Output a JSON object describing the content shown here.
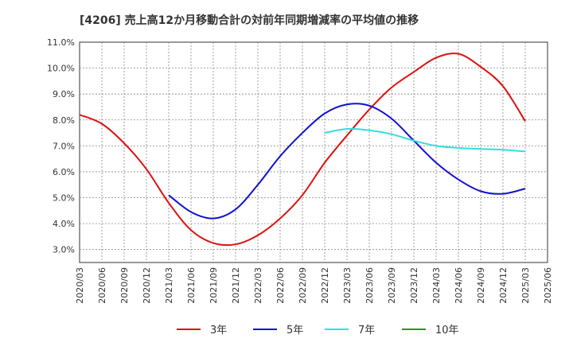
{
  "chart_data": {
    "type": "line",
    "title": "[4206]  売上高12か月移動合計の対前年同期増減率の平均値の推移",
    "xlabel": "",
    "ylabel": "",
    "x_ticks": [
      "2020/03",
      "2020/06",
      "2020/09",
      "2020/12",
      "2021/03",
      "2021/06",
      "2021/09",
      "2021/12",
      "2022/03",
      "2022/06",
      "2022/09",
      "2022/12",
      "2023/03",
      "2023/06",
      "2023/09",
      "2023/12",
      "2024/03",
      "2024/06",
      "2024/09",
      "2024/12",
      "2025/03",
      "2025/06"
    ],
    "y_ticks": [
      "3.0%",
      "4.0%",
      "5.0%",
      "6.0%",
      "7.0%",
      "8.0%",
      "9.0%",
      "10.0%",
      "11.0%"
    ],
    "ylim": [
      2.5,
      11.0
    ],
    "grid": true,
    "legend_position": "bottom",
    "series": [
      {
        "name": "3年",
        "color": "#dd1111",
        "x": [
          "2020/03",
          "2020/06",
          "2020/09",
          "2020/12",
          "2021/03",
          "2021/06",
          "2021/09",
          "2021/12",
          "2022/03",
          "2022/06",
          "2022/09",
          "2022/12",
          "2023/03",
          "2023/06",
          "2023/09",
          "2023/12",
          "2024/03",
          "2024/06",
          "2024/09",
          "2024/12",
          "2025/03"
        ],
        "values": [
          8.2,
          7.85,
          7.1,
          6.1,
          4.8,
          3.75,
          3.25,
          3.2,
          3.55,
          4.2,
          5.1,
          6.35,
          7.4,
          8.4,
          9.25,
          9.85,
          10.4,
          10.55,
          10.05,
          9.3,
          7.95
        ]
      },
      {
        "name": "5年",
        "color": "#1111cc",
        "x": [
          "2021/03",
          "2021/06",
          "2021/09",
          "2021/12",
          "2022/03",
          "2022/06",
          "2022/09",
          "2022/12",
          "2023/03",
          "2023/06",
          "2023/09",
          "2023/12",
          "2024/03",
          "2024/06",
          "2024/09",
          "2024/12",
          "2025/03"
        ],
        "values": [
          5.1,
          4.45,
          4.2,
          4.55,
          5.5,
          6.6,
          7.5,
          8.25,
          8.6,
          8.55,
          8.05,
          7.2,
          6.35,
          5.7,
          5.25,
          5.15,
          5.35
        ]
      },
      {
        "name": "7年",
        "color": "#33dddd",
        "x": [
          "2022/12",
          "2023/03",
          "2023/06",
          "2023/09",
          "2023/12",
          "2024/03",
          "2024/06",
          "2024/09",
          "2024/12",
          "2025/03"
        ],
        "values": [
          7.5,
          7.65,
          7.6,
          7.45,
          7.2,
          7.0,
          6.92,
          6.88,
          6.85,
          6.78
        ]
      },
      {
        "name": "10年",
        "color": "#229922",
        "x": [],
        "values": []
      }
    ]
  }
}
